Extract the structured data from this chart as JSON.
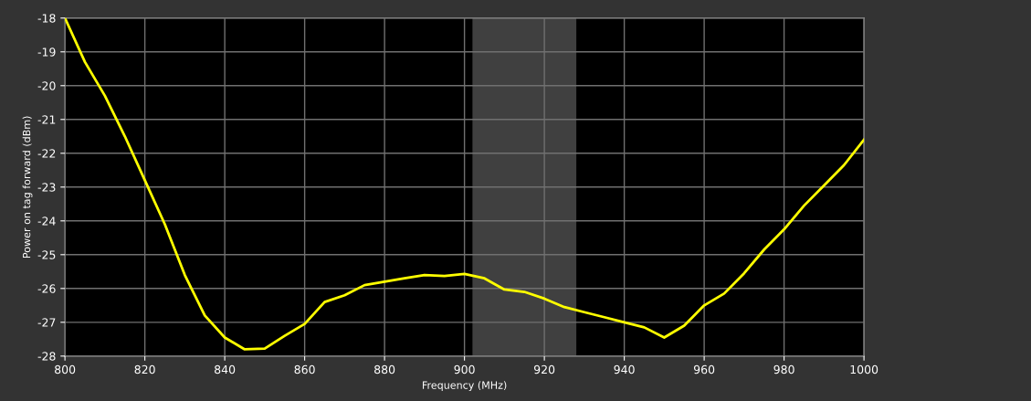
{
  "chart_data": {
    "type": "line",
    "xlabel": "Frequency (MHz)",
    "ylabel": "Power on tag forward (dBm)",
    "x": [
      800,
      805,
      810,
      815,
      820,
      825,
      830,
      835,
      840,
      845,
      850,
      855,
      860,
      865,
      870,
      875,
      880,
      885,
      890,
      895,
      900,
      905,
      910,
      915,
      920,
      925,
      930,
      935,
      940,
      945,
      950,
      955,
      960,
      965,
      970,
      975,
      980,
      985,
      990,
      995,
      1000
    ],
    "series": [
      {
        "color": "#ffff00",
        "values": [
          -18.0,
          -19.3,
          -20.3,
          -21.5,
          -22.8,
          -24.1,
          -25.6,
          -26.8,
          -27.45,
          -27.8,
          -27.78,
          -27.4,
          -27.05,
          -26.4,
          -26.2,
          -25.9,
          -25.8,
          -25.7,
          -25.6,
          -25.63,
          -25.57,
          -25.7,
          -26.03,
          -26.1,
          -26.3,
          -26.55,
          -26.7,
          -26.85,
          -27.0,
          -27.15,
          -27.45,
          -27.1,
          -26.5,
          -26.15,
          -25.55,
          -24.85,
          -24.25,
          -23.55,
          -22.95,
          -22.35,
          -21.6
        ]
      }
    ],
    "bands": [
      {
        "axis": "x",
        "from": 902,
        "to": 928,
        "color": "#404040"
      }
    ],
    "xlim": [
      800,
      1000
    ],
    "xticks": [
      800,
      820,
      840,
      860,
      880,
      900,
      920,
      940,
      960,
      980,
      1000
    ],
    "ylim": [
      -28,
      -18
    ],
    "yticks": [
      -28,
      -27,
      -26,
      -25,
      -24,
      -23,
      -22,
      -21,
      -20,
      -19,
      -18
    ],
    "grid": true,
    "marker": "none",
    "line_style": "solid",
    "legend": false
  }
}
